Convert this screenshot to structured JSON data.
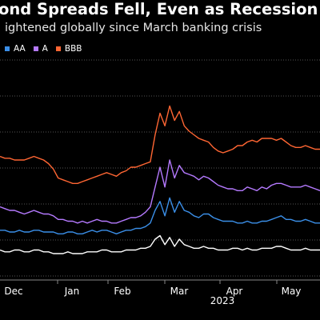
{
  "chart_data": {
    "type": "line",
    "title": "ond Spreads Fell, Even as Recession",
    "subtitle": "ightened globally since March banking crisis",
    "xlabel": "2023",
    "ylabel": "",
    "x_ticks": [
      "Dec",
      "Jan",
      "Feb",
      "Mar",
      "Apr",
      "May"
    ],
    "grid": true,
    "legend_position": "top-left",
    "series": [
      {
        "name": "AA",
        "color": "#3b8fe8",
        "values": [
          21,
          21,
          20,
          20,
          21,
          20,
          20,
          21,
          21,
          20,
          20,
          20,
          19,
          19,
          20,
          20,
          19,
          19,
          20,
          21,
          20,
          21,
          21,
          20,
          19,
          20,
          21,
          21,
          22,
          22,
          23,
          25,
          32,
          37,
          29,
          39,
          31,
          37,
          32,
          31,
          29,
          28,
          30,
          30,
          28,
          27,
          26,
          26,
          26,
          25,
          25,
          26,
          25,
          25,
          26,
          26,
          27,
          28,
          29,
          27,
          27,
          26,
          26,
          27,
          26,
          25,
          25
        ]
      },
      {
        "name": "A",
        "color": "#b57aff",
        "values": [
          34,
          33,
          32,
          32,
          31,
          30,
          31,
          32,
          31,
          30,
          30,
          29,
          27,
          27,
          26,
          26,
          25,
          26,
          25,
          26,
          27,
          26,
          26,
          25,
          25,
          26,
          27,
          28,
          28,
          29,
          31,
          34,
          45,
          56,
          45,
          60,
          50,
          57,
          53,
          52,
          51,
          49,
          51,
          50,
          48,
          46,
          45,
          44,
          44,
          43,
          43,
          45,
          44,
          43,
          45,
          44,
          46,
          47,
          47,
          46,
          45,
          45,
          45,
          46,
          45,
          44,
          43
        ]
      },
      {
        "name": "BBB",
        "color": "#ff6633",
        "values": [
          62,
          61,
          61,
          60,
          60,
          60,
          61,
          62,
          61,
          60,
          58,
          55,
          50,
          49,
          48,
          47,
          47,
          48,
          49,
          50,
          51,
          52,
          53,
          52,
          51,
          53,
          54,
          56,
          56,
          57,
          58,
          59,
          74,
          86,
          79,
          90,
          82,
          87,
          79,
          76,
          74,
          72,
          71,
          70,
          67,
          65,
          64,
          65,
          66,
          68,
          68,
          70,
          71,
          70,
          72,
          72,
          72,
          71,
          72,
          70,
          68,
          67,
          67,
          68,
          67,
          66,
          66
        ]
      }
    ]
  },
  "header": {
    "title": "ond Spreads Fell, Even as Recession",
    "subtitle": "ightened globally since March banking crisis"
  },
  "legend": {
    "items": [
      {
        "label": "AA",
        "color": "#3b8fe8"
      },
      {
        "label": "A",
        "color": "#b57aff"
      },
      {
        "label": "BBB",
        "color": "#ff6633"
      }
    ]
  },
  "axis": {
    "year_label": "2023",
    "months": [
      "Dec",
      "Jan",
      "Feb",
      "Mar",
      "Apr",
      "May"
    ]
  },
  "white_series": {
    "color": "#ffffff",
    "values": [
      10,
      9,
      9,
      10,
      10,
      9,
      9,
      10,
      10,
      9,
      9,
      8,
      8,
      8,
      9,
      8,
      8,
      8,
      9,
      9,
      9,
      10,
      10,
      9,
      9,
      9,
      10,
      10,
      10,
      11,
      11,
      12,
      16,
      18,
      13,
      17,
      12,
      16,
      13,
      12,
      11,
      11,
      12,
      11,
      11,
      10,
      10,
      10,
      11,
      11,
      10,
      11,
      10,
      10,
      11,
      11,
      11,
      12,
      12,
      11,
      10,
      10,
      10,
      11,
      10,
      10,
      10
    ]
  },
  "colors": {
    "background": "#000000",
    "grid": "#555555",
    "text": "#ffffff"
  }
}
